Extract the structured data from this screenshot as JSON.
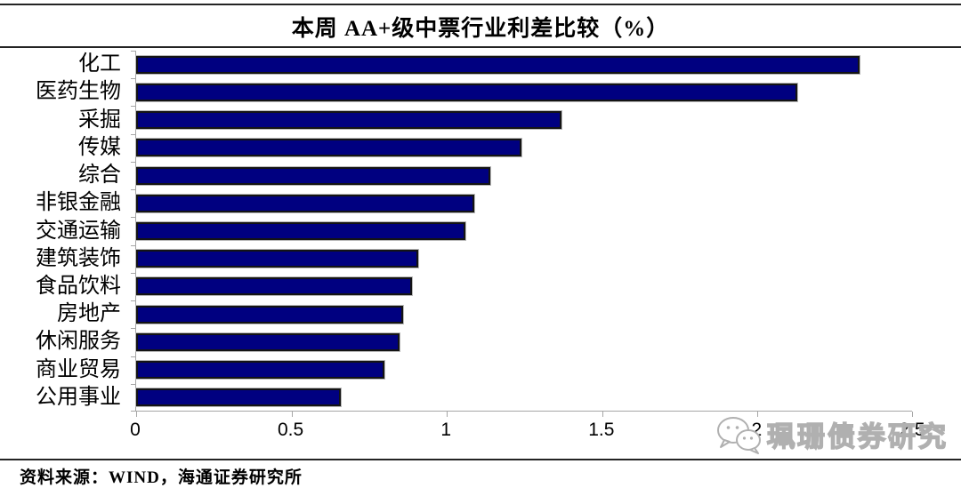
{
  "title": "本周 AA+级中票行业利差比较（%）",
  "source_note": "资料来源：WIND，海通证券研究所",
  "watermark": {
    "icon": "wechat-chat-bubbles-icon",
    "label": "珮珊债券研究"
  },
  "colors": {
    "bar_fill": "#000080",
    "bar_border": "#141414",
    "axis": "#a6a6a6",
    "rule": "#242424",
    "watermark_outline": "#b0b0b0"
  },
  "chart_data": {
    "type": "bar",
    "orientation": "horizontal",
    "title": "本周 AA+级中票行业利差比较（%）",
    "categories": [
      "化工",
      "医药生物",
      "采掘",
      "传媒",
      "综合",
      "非银金融",
      "交通运输",
      "建筑装饰",
      "食品饮料",
      "房地产",
      "休闲服务",
      "商业贸易",
      "公用事业"
    ],
    "values": [
      2.33,
      2.13,
      1.37,
      1.24,
      1.14,
      1.09,
      1.06,
      0.91,
      0.89,
      0.86,
      0.85,
      0.8,
      0.66
    ],
    "xlabel": "",
    "ylabel": "",
    "xlim": [
      0,
      2.5
    ],
    "x_ticks": [
      "0",
      "0.5",
      "1",
      "1.5",
      "2",
      "2.5"
    ],
    "grid": false,
    "legend": false
  }
}
